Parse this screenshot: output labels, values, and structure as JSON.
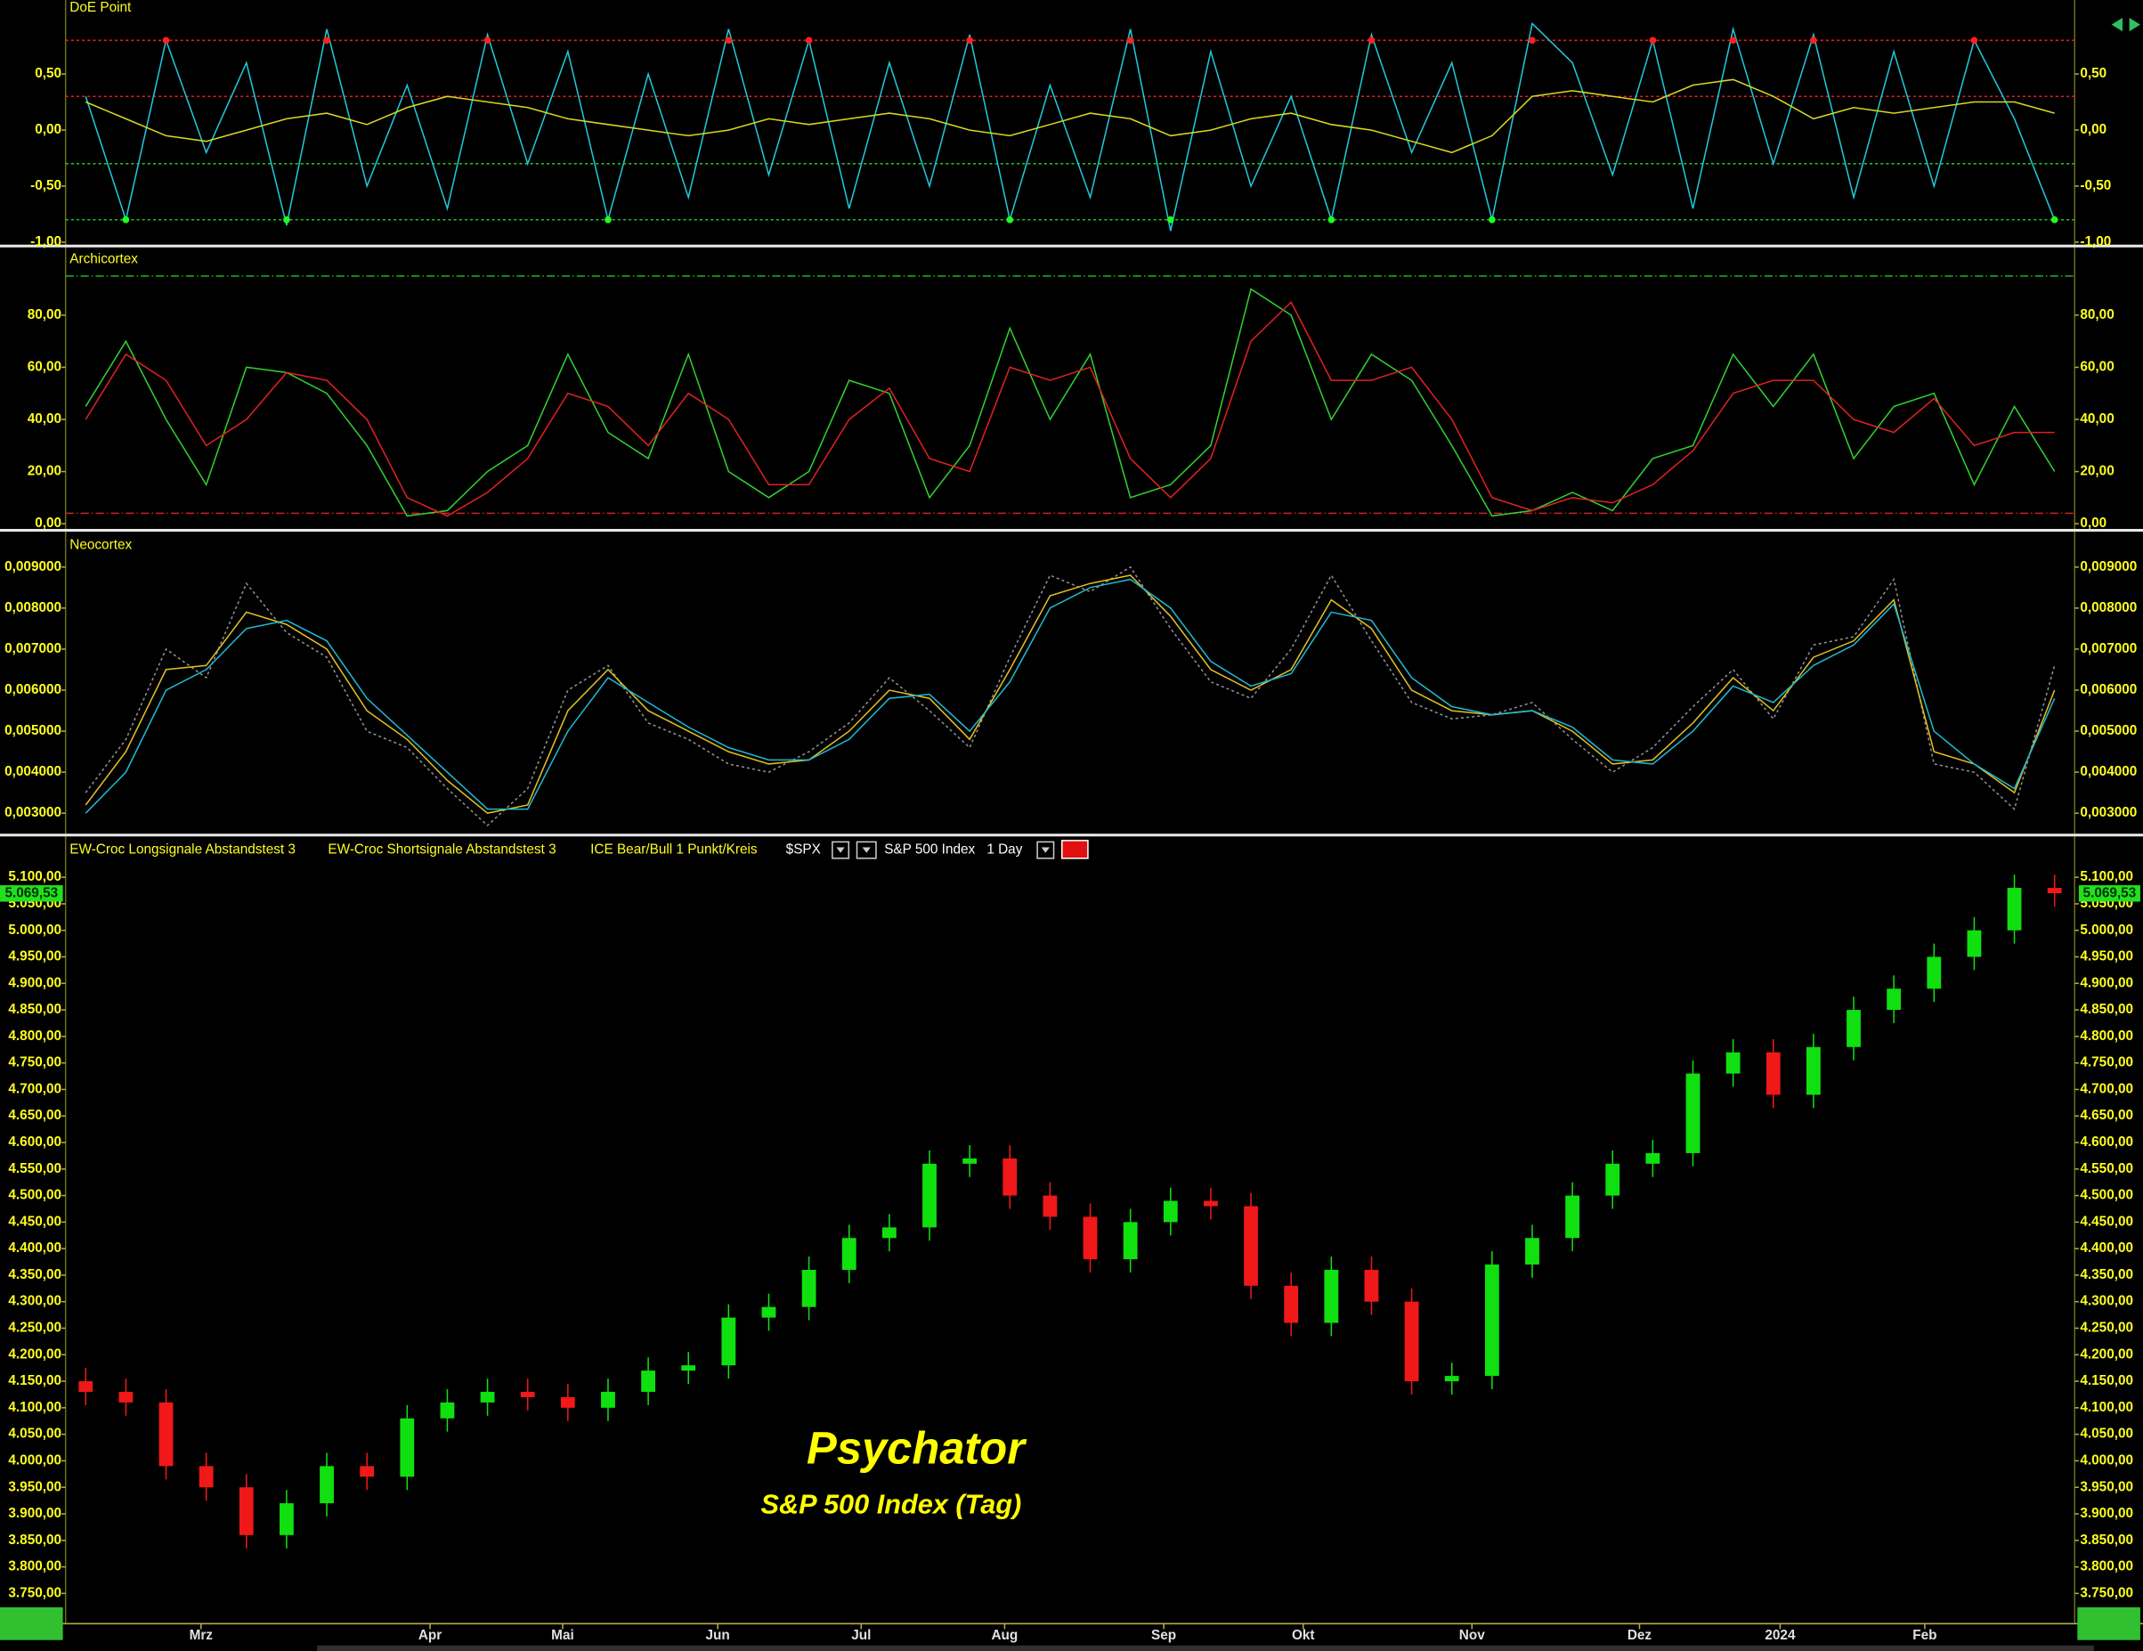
{
  "chart_data": [
    {
      "type": "line",
      "title": "DoE Point",
      "ylim": [
        -1.01,
        1.16
      ],
      "xlim": [
        -0.5,
        49.5
      ],
      "yticks": [
        {
          "value": 0.5,
          "label": "0,50"
        },
        {
          "value": 0,
          "label": "0,00"
        },
        {
          "value": -0.5,
          "label": "-0,50"
        },
        {
          "value": -1,
          "label": "-1,00"
        }
      ],
      "levels": [
        {
          "value": 0.8,
          "color": "#e02020"
        },
        {
          "value": 0.3,
          "color": "#e02020"
        },
        {
          "value": -0.3,
          "color": "#20c020"
        },
        {
          "value": -0.8,
          "color": "#20c020"
        }
      ],
      "signal_colors": [
        "#ff2020",
        "#20ff20"
      ],
      "series": [
        {
          "color": "#20c8d8",
          "values": [
            0.3,
            -0.8,
            0.8,
            -0.2,
            0.6,
            -0.85,
            0.9,
            -0.5,
            0.4,
            -0.7,
            0.85,
            -0.3,
            0.7,
            -0.8,
            0.5,
            -0.6,
            0.9,
            -0.4,
            0.8,
            -0.7,
            0.6,
            -0.5,
            0.85,
            -0.8,
            0.4,
            -0.6,
            0.9,
            -0.9,
            0.7,
            -0.5,
            0.3,
            -0.8,
            0.85,
            -0.2,
            0.6,
            -0.8,
            0.95,
            0.6,
            -0.4,
            0.8,
            -0.7,
            0.9,
            -0.3,
            0.85,
            -0.6,
            0.7,
            -0.5,
            0.8,
            0.1,
            -0.8
          ]
        },
        {
          "color": "#d8d820",
          "values": [
            0.25,
            0.1,
            -0.05,
            -0.1,
            0.0,
            0.1,
            0.15,
            0.05,
            0.2,
            0.3,
            0.25,
            0.2,
            0.1,
            0.05,
            0.0,
            -0.05,
            0.0,
            0.1,
            0.05,
            0.1,
            0.15,
            0.1,
            0.0,
            -0.05,
            0.05,
            0.15,
            0.1,
            -0.05,
            0.0,
            0.1,
            0.15,
            0.05,
            0.0,
            -0.1,
            -0.2,
            -0.05,
            0.3,
            0.35,
            0.3,
            0.25,
            0.4,
            0.45,
            0.3,
            0.1,
            0.2,
            0.15,
            0.2,
            0.25,
            0.25,
            0.15
          ]
        }
      ]
    },
    {
      "type": "line",
      "title": "Archicortex",
      "ylim": [
        -2,
        106
      ],
      "xlim": [
        -0.5,
        49.5
      ],
      "yticks": [
        {
          "value": 0,
          "label": "0,00"
        },
        {
          "value": 20,
          "label": "20,00"
        },
        {
          "value": 40,
          "label": "40,00"
        },
        {
          "value": 60,
          "label": "60,00"
        },
        {
          "value": 80,
          "label": "80,00"
        }
      ],
      "levels": [
        {
          "value": 95,
          "color": "#20b020"
        },
        {
          "value": 4,
          "color": "#d02020"
        }
      ],
      "series": [
        {
          "color": "#30d030",
          "values": [
            45,
            70,
            40,
            15,
            60,
            58,
            50,
            30,
            3,
            5,
            20,
            30,
            65,
            35,
            25,
            65,
            20,
            10,
            20,
            55,
            50,
            10,
            30,
            75,
            40,
            65,
            10,
            15,
            30,
            90,
            80,
            40,
            65,
            55,
            30,
            3,
            5,
            12,
            5,
            25,
            30,
            65,
            45,
            65,
            25,
            45,
            50,
            15,
            45,
            20
          ]
        },
        {
          "color": "#e02020",
          "values": [
            40,
            65,
            55,
            30,
            40,
            58,
            55,
            40,
            10,
            3,
            12,
            25,
            50,
            45,
            30,
            50,
            40,
            15,
            15,
            40,
            52,
            25,
            20,
            60,
            55,
            60,
            25,
            10,
            25,
            70,
            85,
            55,
            55,
            60,
            40,
            10,
            5,
            10,
            8,
            15,
            28,
            50,
            55,
            55,
            40,
            35,
            48,
            30,
            35,
            35
          ]
        }
      ]
    },
    {
      "type": "line",
      "title": "Neocortex",
      "ylim": [
        0.0025,
        0.00983
      ],
      "xlim": [
        -0.5,
        49.5
      ],
      "yticks": [
        {
          "value": 0.003,
          "label": "0,003000"
        },
        {
          "value": 0.004,
          "label": "0,004000"
        },
        {
          "value": 0.005,
          "label": "0,005000"
        },
        {
          "value": 0.006,
          "label": "0,006000"
        },
        {
          "value": 0.007,
          "label": "0,007000"
        },
        {
          "value": 0.008,
          "label": "0,008000"
        },
        {
          "value": 0.009,
          "label": "0,009000"
        }
      ],
      "series": [
        {
          "color": "#909090",
          "dashed": true,
          "values": [
            0.0035,
            0.0048,
            0.007,
            0.0063,
            0.0086,
            0.0074,
            0.0068,
            0.005,
            0.0046,
            0.0036,
            0.0027,
            0.0036,
            0.006,
            0.0066,
            0.0052,
            0.0048,
            0.0042,
            0.004,
            0.0045,
            0.0052,
            0.0063,
            0.0055,
            0.0046,
            0.0068,
            0.0088,
            0.0084,
            0.009,
            0.0075,
            0.0062,
            0.0058,
            0.007,
            0.0088,
            0.0072,
            0.0057,
            0.0053,
            0.0054,
            0.0057,
            0.0048,
            0.004,
            0.0046,
            0.0056,
            0.0065,
            0.0053,
            0.0071,
            0.0073,
            0.0087,
            0.0042,
            0.004,
            0.0031,
            0.0066
          ]
        },
        {
          "color": "#e0c020",
          "values": [
            0.0032,
            0.0045,
            0.0065,
            0.0066,
            0.0079,
            0.0076,
            0.007,
            0.0055,
            0.0048,
            0.0038,
            0.003,
            0.0032,
            0.0055,
            0.0065,
            0.0055,
            0.005,
            0.0045,
            0.0042,
            0.0043,
            0.005,
            0.006,
            0.0058,
            0.0048,
            0.0065,
            0.0083,
            0.0086,
            0.0088,
            0.0078,
            0.0065,
            0.006,
            0.0065,
            0.0082,
            0.0075,
            0.006,
            0.0055,
            0.0054,
            0.0055,
            0.005,
            0.0042,
            0.0043,
            0.0052,
            0.0063,
            0.0055,
            0.0068,
            0.0072,
            0.0082,
            0.0045,
            0.0042,
            0.0035,
            0.006
          ]
        },
        {
          "color": "#20b8d0",
          "values": [
            0.003,
            0.004,
            0.006,
            0.0065,
            0.0075,
            0.0077,
            0.0072,
            0.0058,
            0.0049,
            0.004,
            0.0031,
            0.0031,
            0.005,
            0.0063,
            0.0057,
            0.0051,
            0.0046,
            0.0043,
            0.0043,
            0.0048,
            0.0058,
            0.0059,
            0.005,
            0.0062,
            0.008,
            0.0085,
            0.0087,
            0.008,
            0.0067,
            0.0061,
            0.0064,
            0.0079,
            0.0077,
            0.0063,
            0.0056,
            0.0054,
            0.0055,
            0.0051,
            0.0043,
            0.0042,
            0.005,
            0.0061,
            0.0057,
            0.0066,
            0.0071,
            0.0081,
            0.005,
            0.0042,
            0.0036,
            0.0058
          ]
        }
      ]
    },
    {
      "type": "candlestick",
      "indicators": [
        "EW-Croc Longsignale Abstandstest 3",
        "EW-Croc Shortsignale Abstandstest 3",
        "ICE Bear/Bull 1 Punkt/Kreis"
      ],
      "symbol": "$SPX",
      "name": "S&P 500 Index",
      "interval": "1 Day",
      "watermark": "Psychator",
      "watermark_subtitle": "S&P 500 Index (Tag)",
      "up_color": "#10e010",
      "down_color": "#f01818",
      "last_value": 5069.53,
      "last_label": "5.069,53",
      "ylim": [
        3693,
        5177
      ],
      "xlim": [
        -0.5,
        49.5
      ],
      "xticks": [
        {
          "value": 2.87,
          "label": "Mrz"
        },
        {
          "value": 8.57,
          "label": "Apr"
        },
        {
          "value": 11.87,
          "label": "Mai"
        },
        {
          "value": 15.73,
          "label": "Jun"
        },
        {
          "value": 19.3,
          "label": "Jul"
        },
        {
          "value": 22.87,
          "label": "Aug"
        },
        {
          "value": 26.83,
          "label": "Sep"
        },
        {
          "value": 30.3,
          "label": "Okt"
        },
        {
          "value": 34.5,
          "label": "Nov"
        },
        {
          "value": 38.67,
          "label": "Dez"
        },
        {
          "value": 42.17,
          "label": "2024"
        },
        {
          "value": 45.77,
          "label": "Feb"
        }
      ],
      "yticks": [
        {
          "value": 3750,
          "label": "3.750,00"
        },
        {
          "value": 3800,
          "label": "3.800,00"
        },
        {
          "value": 3850,
          "label": "3.850,00"
        },
        {
          "value": 3900,
          "label": "3.900,00"
        },
        {
          "value": 3950,
          "label": "3.950,00"
        },
        {
          "value": 4000,
          "label": "4.000,00"
        },
        {
          "value": 4050,
          "label": "4.050,00"
        },
        {
          "value": 4100,
          "label": "4.100,00"
        },
        {
          "value": 4150,
          "label": "4.150,00"
        },
        {
          "value": 4200,
          "label": "4.200,00"
        },
        {
          "value": 4250,
          "label": "4.250,00"
        },
        {
          "value": 4300,
          "label": "4.300,00"
        },
        {
          "value": 4350,
          "label": "4.350,00"
        },
        {
          "value": 4400,
          "label": "4.400,00"
        },
        {
          "value": 4450,
          "label": "4.450,00"
        },
        {
          "value": 4500,
          "label": "4.500,00"
        },
        {
          "value": 4550,
          "label": "4.550,00"
        },
        {
          "value": 4600,
          "label": "4.600,00"
        },
        {
          "value": 4650,
          "label": "4.650,00"
        },
        {
          "value": 4700,
          "label": "4.700,00"
        },
        {
          "value": 4750,
          "label": "4.750,00"
        },
        {
          "value": 4800,
          "label": "4.800,00"
        },
        {
          "value": 4850,
          "label": "4.850,00"
        },
        {
          "value": 4900,
          "label": "4.900,00"
        },
        {
          "value": 4950,
          "label": "4.950,00"
        },
        {
          "value": 5000,
          "label": "5.000,00"
        },
        {
          "value": 5050,
          "label": "5.050,00"
        },
        {
          "value": 5100,
          "label": "5.100,00"
        }
      ],
      "open": [
        4150,
        4130,
        4110,
        3990,
        3950,
        3860,
        3920,
        3990,
        3970,
        4080,
        4110,
        4130,
        4120,
        4100,
        4130,
        4170,
        4180,
        4270,
        4290,
        4360,
        4420,
        4440,
        4560,
        4570,
        4500,
        4460,
        4380,
        4450,
        4490,
        4480,
        4330,
        4260,
        4360,
        4300,
        4150,
        4160,
        4370,
        4420,
        4500,
        4560,
        4580,
        4730,
        4770,
        4690,
        4780,
        4850,
        4890,
        4950,
        5000,
        5080
      ],
      "high": [
        4175,
        4155,
        4135,
        4015,
        3975,
        3945,
        4015,
        4015,
        4105,
        4135,
        4155,
        4155,
        4145,
        4155,
        4195,
        4205,
        4295,
        4315,
        4385,
        4445,
        4465,
        4585,
        4595,
        4595,
        4525,
        4485,
        4475,
        4515,
        4515,
        4505,
        4355,
        4385,
        4385,
        4325,
        4185,
        4395,
        4445,
        4525,
        4585,
        4605,
        4755,
        4795,
        4795,
        4805,
        4875,
        4915,
        4975,
        5025,
        5105,
        5105
      ],
      "low": [
        4105,
        4085,
        3965,
        3925,
        3835,
        3835,
        3895,
        3945,
        3945,
        4055,
        4085,
        4095,
        4075,
        4075,
        4105,
        4145,
        4155,
        4245,
        4265,
        4335,
        4395,
        4415,
        4535,
        4475,
        4435,
        4355,
        4355,
        4425,
        4455,
        4305,
        4235,
        4235,
        4275,
        4125,
        4125,
        4135,
        4345,
        4395,
        4475,
        4535,
        4555,
        4705,
        4665,
        4665,
        4755,
        4825,
        4865,
        4925,
        4975,
        5045
      ],
      "close": [
        4130,
        4110,
        3990,
        3950,
        3860,
        3920,
        3990,
        3970,
        4080,
        4110,
        4130,
        4120,
        4100,
        4130,
        4170,
        4180,
        4270,
        4290,
        4360,
        4420,
        4440,
        4560,
        4570,
        4500,
        4460,
        4380,
        4450,
        4490,
        4480,
        4330,
        4260,
        4360,
        4300,
        4150,
        4160,
        4370,
        4420,
        4500,
        4560,
        4580,
        4730,
        4770,
        4690,
        4780,
        4850,
        4890,
        4950,
        5000,
        5080,
        5070
      ]
    }
  ]
}
